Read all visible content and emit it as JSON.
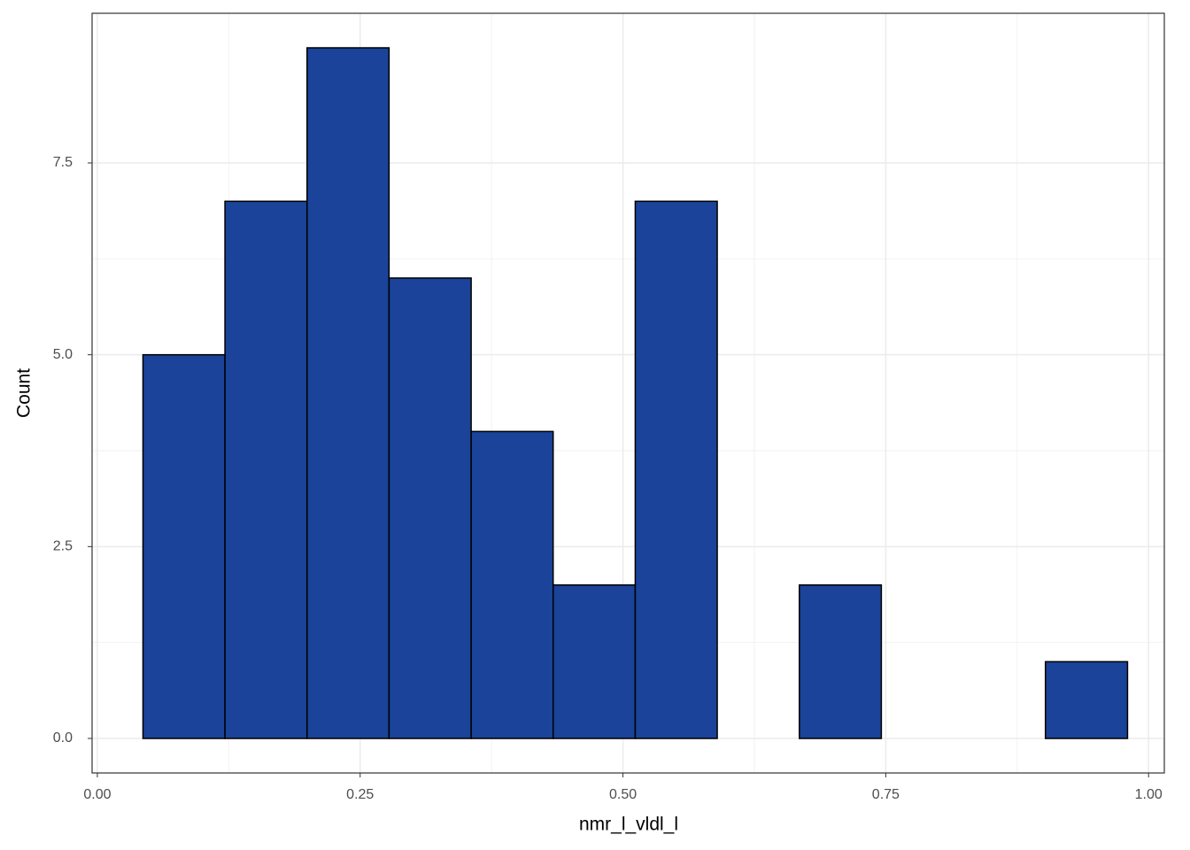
{
  "chart_data": {
    "type": "histogram",
    "x_label": "nmr_l_vldl_l",
    "y_label": "Count",
    "bins": [
      0.0434,
      0.1214,
      0.1995,
      0.2775,
      0.3556,
      0.4336,
      0.5117,
      0.5897,
      0.6678,
      0.7458,
      0.8239,
      0.9019,
      0.98
    ],
    "counts": [
      5,
      7,
      9,
      6,
      4,
      2,
      7,
      0,
      2,
      0,
      0,
      1
    ],
    "color": "#1a4399",
    "edge_color": "#000000",
    "xlim": [
      -0.005,
      1.015
    ],
    "ylim": [
      -0.45,
      9.45
    ],
    "xticks": [
      {
        "value": 0,
        "label": "0.00"
      },
      0.25,
      {
        "value": 0.5,
        "label": "0.50"
      },
      0.75,
      {
        "value": 1,
        "label": "1.00"
      }
    ],
    "yticks": [
      {
        "value": 0,
        "label": "0.0"
      },
      2.5,
      {
        "value": 5,
        "label": "5.0"
      },
      7.5
    ],
    "grid": true
  }
}
